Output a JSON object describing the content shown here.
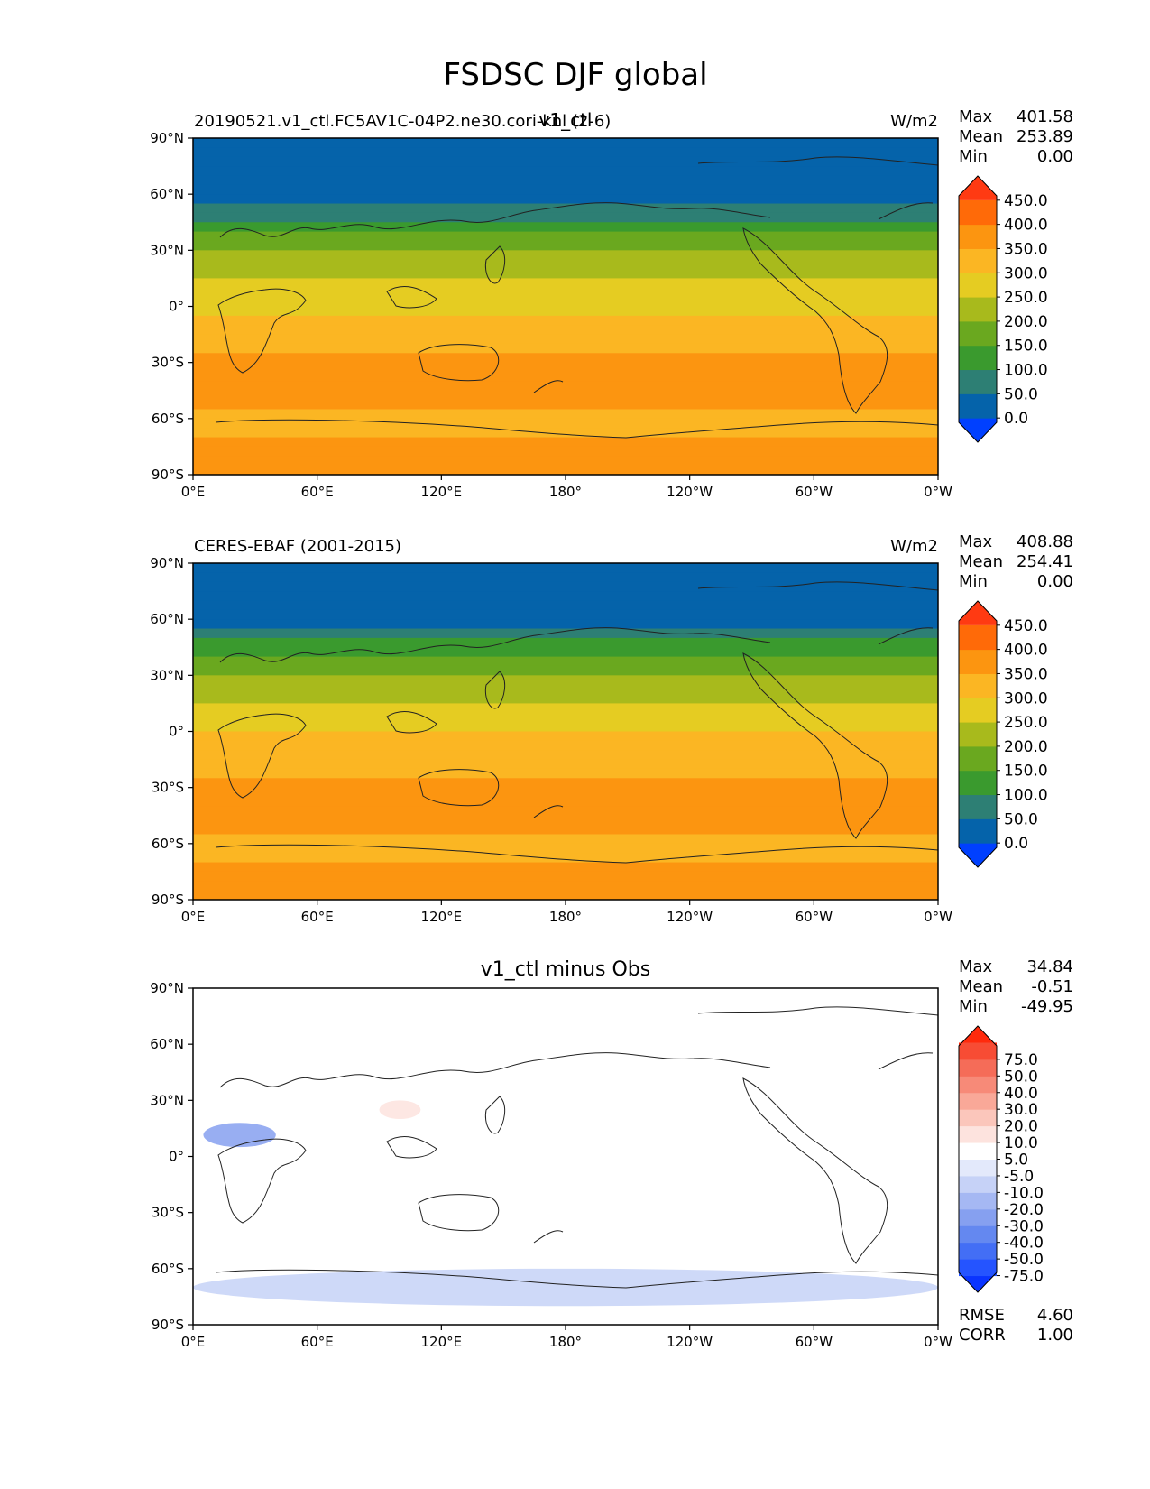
{
  "figure": {
    "title": "FSDSC DJF global"
  },
  "panels": [
    {
      "id": "test",
      "left_label": "20190521.v1_ctl.FC5AV1C-04P2.ne30.cori-knl (2-6)",
      "center_label": "v1_ctl",
      "units": "W/m2",
      "stats": [
        {
          "name": "Max",
          "value": "401.58"
        },
        {
          "name": "Mean",
          "value": "253.89"
        },
        {
          "name": "Min",
          "value": "0.00"
        }
      ],
      "colorbar": {
        "colors": [
          "#0040ff",
          "#0563aa",
          "#2d7f74",
          "#3a9a2e",
          "#6aa81f",
          "#a8ba1c",
          "#e5cc22",
          "#fbb623",
          "#fc9510",
          "#ff6a08",
          "#ff3a12"
        ],
        "tick_labels": [
          "0.0",
          "50.0",
          "100.0",
          "150.0",
          "200.0",
          "250.0",
          "300.0",
          "350.0",
          "400.0",
          "450.0"
        ]
      }
    },
    {
      "id": "reference",
      "left_label": "CERES-EBAF (2001-2015)",
      "center_label": "",
      "units": "W/m2",
      "stats": [
        {
          "name": "Max",
          "value": "408.88"
        },
        {
          "name": "Mean",
          "value": "254.41"
        },
        {
          "name": "Min",
          "value": "0.00"
        }
      ],
      "colorbar": {
        "colors": [
          "#0040ff",
          "#0563aa",
          "#2d7f74",
          "#3a9a2e",
          "#6aa81f",
          "#a8ba1c",
          "#e5cc22",
          "#fbb623",
          "#fc9510",
          "#ff6a08",
          "#ff3a12"
        ],
        "tick_labels": [
          "0.0",
          "50.0",
          "100.0",
          "150.0",
          "200.0",
          "250.0",
          "300.0",
          "350.0",
          "400.0",
          "450.0"
        ]
      }
    },
    {
      "id": "difference",
      "left_label": "",
      "center_label": "v1_ctl minus Obs",
      "units": "",
      "stats": [
        {
          "name": "Max",
          "value": "34.84"
        },
        {
          "name": "Mean",
          "value": "-0.51"
        },
        {
          "name": "Min",
          "value": "-49.95"
        }
      ],
      "bottom_stats": [
        {
          "name": "RMSE",
          "value": "4.60"
        },
        {
          "name": "CORR",
          "value": "1.00"
        }
      ],
      "colorbar": {
        "colors": [
          "#0a34ff",
          "#2554ff",
          "#436ef5",
          "#6488f0",
          "#86a0f0",
          "#a5b8f3",
          "#c6d2f7",
          "#e3e9fb",
          "#ffffff",
          "#fde3de",
          "#fbc6bb",
          "#f9a898",
          "#f78a78",
          "#f56c58",
          "#f74c34",
          "#ff2a0c"
        ],
        "tick_labels": [
          "-75.0",
          "-50.0",
          "-40.0",
          "-30.0",
          "-20.0",
          "-10.0",
          "-5.0",
          "5.0",
          "10.0",
          "20.0",
          "30.0",
          "40.0",
          "50.0",
          "75.0"
        ]
      }
    }
  ],
  "axes": {
    "lat_ticks": [
      "90°N",
      "60°N",
      "30°N",
      "0°",
      "30°S",
      "60°S",
      "90°S"
    ],
    "lon_ticks": [
      "0°E",
      "60°E",
      "120°E",
      "180°",
      "120°W",
      "60°W",
      "0°W"
    ]
  },
  "chart_data": {
    "type": "heatmap",
    "title": "FSDSC DJF global",
    "units": "W/m2",
    "xlim": [
      0,
      360
    ],
    "ylim": [
      -90,
      90
    ],
    "zonal_band_fields": {
      "lat_edges": [
        90,
        85,
        80,
        75,
        70,
        65,
        60,
        55,
        50,
        45,
        40,
        35,
        30,
        25,
        20,
        15,
        10,
        5,
        0,
        -5,
        -10,
        -15,
        -20,
        -25,
        -30,
        -35,
        -40,
        -45,
        -50,
        -55,
        -60,
        -65,
        -70,
        -75,
        -80,
        -85,
        -90
      ],
      "test": [
        5,
        25,
        25,
        25,
        25,
        25,
        25,
        75,
        75,
        125,
        175,
        175,
        225,
        225,
        225,
        275,
        275,
        275,
        275,
        325,
        325,
        325,
        325,
        375,
        375,
        375,
        375,
        375,
        375,
        325,
        325,
        325,
        375,
        375,
        375,
        375
      ],
      "reference": [
        5,
        25,
        25,
        25,
        25,
        25,
        25,
        75,
        125,
        125,
        175,
        175,
        225,
        225,
        225,
        275,
        275,
        275,
        325,
        325,
        325,
        325,
        325,
        375,
        375,
        375,
        375,
        375,
        375,
        325,
        325,
        325,
        375,
        375,
        375,
        375
      ]
    },
    "difference_regions": [
      {
        "lon": [
          5,
          40
        ],
        "lat": [
          5,
          18
        ],
        "value": -30
      },
      {
        "lon": [
          90,
          110
        ],
        "lat": [
          20,
          30
        ],
        "value": 15
      },
      {
        "lon": [
          125,
          195
        ],
        "lat": [
          -5,
          -15
        ],
        "value": 7
      },
      {
        "lon": [
          280,
          320
        ],
        "lat": [
          -5,
          -25
        ],
        "value": 7
      },
      {
        "lon": [
          0,
          360
        ],
        "lat": [
          -60,
          -80
        ],
        "value": -10
      }
    ]
  }
}
